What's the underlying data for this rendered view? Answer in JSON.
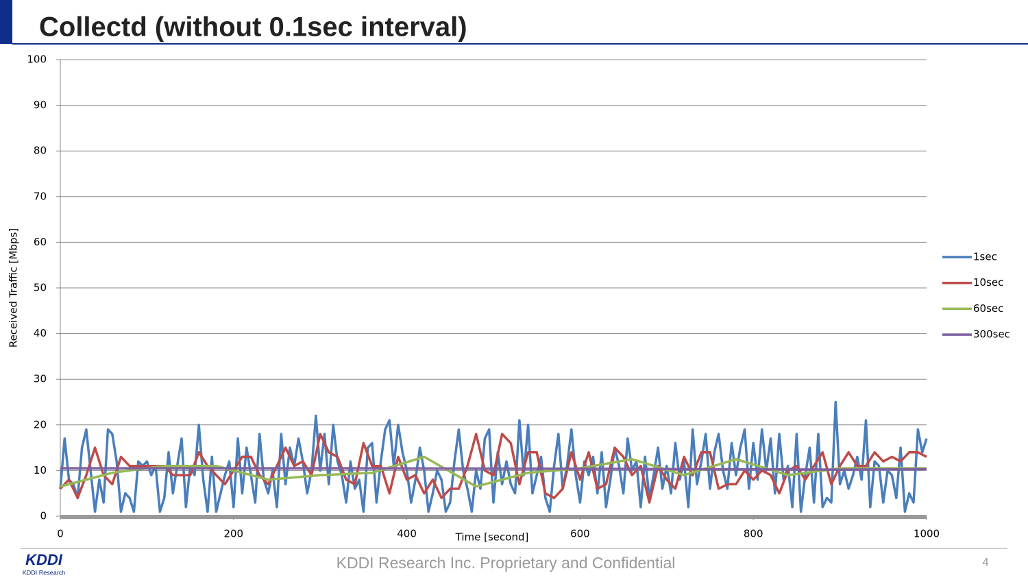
{
  "header": {
    "title": "Collectd (without 0.1sec interval)"
  },
  "footer": {
    "text": "KDDI Research Inc. Proprietary and Confidential",
    "page": "4",
    "logo": "KDDI",
    "logo_sub": "KDDI Research"
  },
  "chart_data": {
    "type": "line",
    "x_label": "Time [second]",
    "y_label": "Received Traffic [Mbps]",
    "xlim": [
      0,
      1000
    ],
    "xticks": [
      0,
      200,
      400,
      600,
      800,
      1000
    ],
    "ylim": [
      0,
      100
    ],
    "yticks": [
      0,
      10,
      20,
      30,
      40,
      50,
      60,
      70,
      80,
      90,
      100
    ],
    "grid": true,
    "legend": "right",
    "series": [
      {
        "name": "1sec",
        "color": "#4a7ebb",
        "x": [
          0,
          5,
          10,
          15,
          20,
          25,
          30,
          35,
          40,
          45,
          50,
          55,
          60,
          65,
          70,
          75,
          80,
          85,
          90,
          95,
          100,
          105,
          110,
          115,
          120,
          125,
          130,
          135,
          140,
          145,
          150,
          155,
          160,
          165,
          170,
          175,
          180,
          185,
          190,
          195,
          200,
          205,
          210,
          215,
          220,
          225,
          230,
          235,
          240,
          245,
          250,
          255,
          260,
          265,
          270,
          275,
          280,
          285,
          290,
          295,
          300,
          305,
          310,
          315,
          320,
          325,
          330,
          335,
          340,
          345,
          350,
          355,
          360,
          365,
          370,
          375,
          380,
          385,
          390,
          395,
          400,
          405,
          410,
          415,
          420,
          425,
          430,
          435,
          440,
          445,
          450,
          455,
          460,
          465,
          470,
          475,
          480,
          485,
          490,
          495,
          500,
          505,
          510,
          515,
          520,
          525,
          530,
          535,
          540,
          545,
          550,
          555,
          560,
          565,
          570,
          575,
          580,
          585,
          590,
          595,
          600,
          605,
          610,
          615,
          620,
          625,
          630,
          635,
          640,
          645,
          650,
          655,
          660,
          665,
          670,
          675,
          680,
          685,
          690,
          695,
          700,
          705,
          710,
          715,
          720,
          725,
          730,
          735,
          740,
          745,
          750,
          755,
          760,
          765,
          770,
          775,
          780,
          785,
          790,
          795,
          800,
          805,
          810,
          815,
          820,
          825,
          830,
          835,
          840,
          845,
          850,
          855,
          860,
          865,
          870,
          875,
          880,
          885,
          890,
          895,
          900,
          905,
          910,
          915,
          920,
          925,
          930,
          935,
          940,
          945,
          950,
          955,
          960,
          965,
          970,
          975,
          980,
          985,
          990,
          995,
          1000
        ],
        "values": [
          6,
          17,
          8,
          7,
          4,
          15,
          19,
          10,
          1,
          8,
          3,
          19,
          18,
          12,
          1,
          5,
          4,
          1,
          12,
          11,
          12,
          9,
          11,
          1,
          4,
          14,
          5,
          11,
          17,
          2,
          11,
          9,
          20,
          8,
          1,
          13,
          1,
          5,
          9,
          12,
          2,
          17,
          5,
          15,
          9,
          3,
          18,
          8,
          5,
          10,
          2,
          18,
          7,
          15,
          11,
          17,
          12,
          5,
          10,
          22,
          10,
          18,
          7,
          20,
          12,
          9,
          3,
          12,
          6,
          8,
          1,
          15,
          16,
          3,
          12,
          19,
          21,
          11,
          20,
          14,
          10,
          3,
          8,
          15,
          10,
          1,
          5,
          10,
          8,
          1,
          3,
          12,
          19,
          10,
          6,
          1,
          10,
          6,
          17,
          19,
          3,
          14,
          7,
          12,
          7,
          5,
          21,
          9,
          20,
          5,
          9,
          13,
          4,
          1,
          11,
          18,
          6,
          11,
          19,
          9,
          3,
          12,
          9,
          13,
          5,
          14,
          2,
          8,
          15,
          11,
          5,
          17,
          10,
          12,
          2,
          13,
          4,
          9,
          15,
          6,
          11,
          5,
          16,
          8,
          12,
          2,
          19,
          7,
          12,
          18,
          6,
          14,
          18,
          10,
          6,
          16,
          9,
          15,
          19,
          6,
          16,
          8,
          19,
          10,
          17,
          5,
          18,
          8,
          11,
          2,
          18,
          1,
          9,
          15,
          3,
          18,
          2,
          4,
          3,
          25,
          7,
          10,
          6,
          9,
          13,
          8,
          21,
          2,
          12,
          11,
          3,
          10,
          9,
          4,
          15,
          1,
          5,
          3,
          19,
          14,
          17
        ]
      },
      {
        "name": "10sec",
        "color": "#be4b48",
        "x": [
          0,
          10,
          20,
          30,
          40,
          50,
          60,
          70,
          80,
          90,
          100,
          110,
          120,
          130,
          140,
          150,
          160,
          170,
          180,
          190,
          200,
          210,
          220,
          230,
          240,
          250,
          260,
          270,
          280,
          290,
          300,
          310,
          320,
          330,
          340,
          350,
          360,
          370,
          380,
          390,
          400,
          410,
          420,
          430,
          440,
          450,
          460,
          470,
          480,
          490,
          500,
          510,
          520,
          530,
          540,
          550,
          560,
          570,
          580,
          590,
          600,
          610,
          620,
          630,
          640,
          650,
          660,
          670,
          680,
          690,
          700,
          710,
          720,
          730,
          740,
          750,
          760,
          770,
          780,
          790,
          800,
          810,
          820,
          830,
          840,
          850,
          860,
          870,
          880,
          890,
          900,
          910,
          920,
          930,
          940,
          950,
          960,
          970,
          980,
          990,
          1000
        ],
        "values": [
          6,
          8,
          4,
          9,
          15,
          9,
          7,
          13,
          11,
          11,
          11,
          11,
          11,
          9,
          9,
          9,
          14,
          11,
          9,
          7,
          10,
          13,
          13,
          9,
          7,
          11,
          15,
          11,
          12,
          9,
          18,
          14,
          13,
          8,
          7,
          16,
          11,
          11,
          5,
          13,
          8,
          9,
          5,
          8,
          4,
          6,
          6,
          11,
          18,
          10,
          9,
          18,
          16,
          7,
          14,
          14,
          5,
          4,
          6,
          14,
          8,
          14,
          6,
          7,
          15,
          13,
          9,
          11,
          3,
          11,
          8,
          6,
          13,
          9,
          14,
          14,
          6,
          7,
          7,
          10,
          8,
          10,
          9,
          5,
          10,
          11,
          8,
          11,
          14,
          7,
          11,
          14,
          11,
          11,
          14,
          12,
          13,
          12,
          14,
          14,
          13
        ]
      },
      {
        "name": "60sec",
        "color": "#98b954",
        "x": [
          0,
          60,
          120,
          180,
          240,
          300,
          360,
          420,
          480,
          540,
          600,
          660,
          720,
          780,
          840,
          900,
          960,
          1000
        ],
        "values": [
          6.5,
          9.5,
          11,
          11,
          8,
          9,
          9.5,
          13,
          6.5,
          9.5,
          10.5,
          12.5,
          9,
          12.5,
          9,
          10.5,
          10.5,
          10.5
        ]
      },
      {
        "name": "300sec",
        "color": "#7d60a0",
        "x": [
          0,
          300,
          600,
          900,
          1000
        ],
        "values": [
          10.5,
          10.5,
          10.4,
          10.2,
          10.3
        ]
      }
    ]
  }
}
